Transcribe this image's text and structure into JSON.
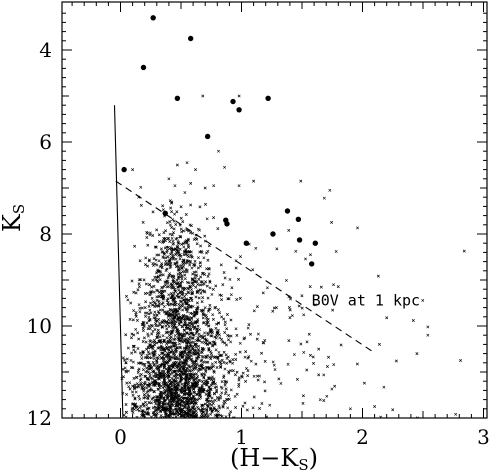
{
  "chart_data": {
    "type": "scatter",
    "xlabel_main": "(H−K",
    "xlabel_sub": "S",
    "xlabel_end": ")",
    "ylabel_main": "K",
    "ylabel_sub": "S",
    "xlim": [
      -0.5,
      3.0
    ],
    "ylim": [
      12.0,
      3.1
    ],
    "y_inverted": true,
    "xticks": [
      0,
      1,
      2,
      3
    ],
    "xtick_labels": [
      "0",
      "1",
      "2",
      "3"
    ],
    "yticks": [
      4,
      6,
      8,
      10,
      12
    ],
    "ytick_labels": [
      "4",
      "6",
      "8",
      "10",
      "12"
    ],
    "grid": false,
    "annotation": {
      "text": "B0V at 1 kpc",
      "x": 1.58,
      "y": 9.45
    },
    "lines": [
      {
        "name": "solid",
        "style": "solid",
        "points": [
          [
            -0.05,
            5.2
          ],
          [
            0.02,
            12.0
          ]
        ]
      },
      {
        "name": "dashed",
        "style": "dashed",
        "points": [
          [
            -0.04,
            6.85
          ],
          [
            2.08,
            10.55
          ]
        ]
      }
    ],
    "bright_stars": [
      [
        0.27,
        3.3
      ],
      [
        0.58,
        3.75
      ],
      [
        0.19,
        4.38
      ],
      [
        0.47,
        5.05
      ],
      [
        0.93,
        5.12
      ],
      [
        1.22,
        5.05
      ],
      [
        0.98,
        5.3
      ],
      [
        0.72,
        5.88
      ],
      [
        0.03,
        6.6
      ],
      [
        0.37,
        7.55
      ],
      [
        0.87,
        7.7
      ],
      [
        0.88,
        7.78
      ],
      [
        1.38,
        7.5
      ],
      [
        1.47,
        7.68
      ],
      [
        1.04,
        8.2
      ],
      [
        1.26,
        8.0
      ],
      [
        1.48,
        8.13
      ],
      [
        1.61,
        8.2
      ],
      [
        1.58,
        8.65
      ]
    ],
    "sparse_stars": [
      [
        1.73,
        7.05
      ],
      [
        1.57,
        8.45
      ],
      [
        2.2,
        9.82
      ],
      [
        2.42,
        9.88
      ],
      [
        2.54,
        10.02
      ],
      [
        2.54,
        10.2
      ],
      [
        2.45,
        10.6
      ],
      [
        2.14,
        10.4
      ],
      [
        2.28,
        10.76
      ],
      [
        2.81,
        10.75
      ],
      [
        1.9,
        11.8
      ],
      [
        2.1,
        11.75
      ],
      [
        2.25,
        11.82
      ],
      [
        2.15,
        11.98
      ],
      [
        2.77,
        11.92
      ],
      [
        1.68,
        11.62
      ],
      [
        1.77,
        11.31
      ],
      [
        1.56,
        10.18
      ],
      [
        1.71,
        10.88
      ],
      [
        1.1,
        6.85
      ],
      [
        0.98,
        6.95
      ],
      [
        0.86,
        6.55
      ],
      [
        0.62,
        6.6
      ],
      [
        0.47,
        6.5
      ],
      [
        0.55,
        6.45
      ],
      [
        0.7,
        7.0
      ],
      [
        0.77,
        6.95
      ],
      [
        0.68,
        5.0
      ],
      [
        0.98,
        5.0
      ],
      [
        1.49,
        6.85
      ],
      [
        0.45,
        6.95
      ],
      [
        0.1,
        6.6
      ],
      [
        0.4,
        6.8
      ],
      [
        0.81,
        6.2
      ],
      [
        0.58,
        6.9
      ]
    ],
    "cloud": {
      "count": 2600,
      "seed": 271828,
      "x_center": 0.48,
      "x_spread": 0.17,
      "x_tail": 0.11,
      "x_tail_slope": 0.55,
      "k_range": [
        6.8,
        12.0
      ],
      "k_density_peak": 11.5
    },
    "colors": {
      "ink": "#000000",
      "background": "#ffffff"
    }
  }
}
